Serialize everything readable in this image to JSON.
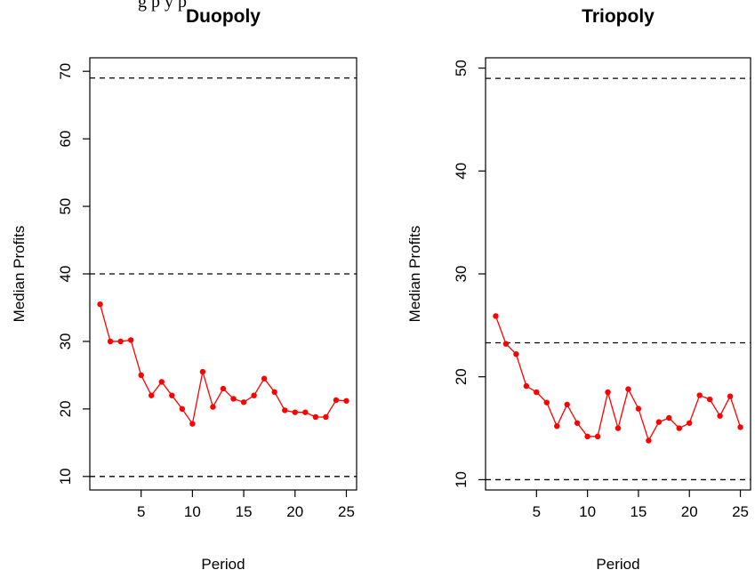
{
  "figure_caption_fragment": "g                p        y p",
  "chart_data": [
    {
      "type": "line",
      "title": "Duopoly",
      "xlabel": "Period",
      "ylabel": "Median Profits",
      "xlim": [
        0,
        26
      ],
      "ylim": [
        8,
        72
      ],
      "xticks": [
        5,
        10,
        15,
        20,
        25
      ],
      "yticks": [
        10,
        20,
        30,
        40,
        50,
        60,
        70
      ],
      "x": [
        1,
        2,
        3,
        4,
        5,
        6,
        7,
        8,
        9,
        10,
        11,
        12,
        13,
        14,
        15,
        16,
        17,
        18,
        19,
        20,
        21,
        22,
        23,
        24,
        25
      ],
      "series": [
        {
          "color": "#ff0000",
          "values": [
            35.5,
            30.0,
            30.0,
            30.2,
            25.0,
            22.0,
            24.0,
            22.0,
            20.0,
            17.8,
            25.5,
            20.3,
            23.0,
            21.5,
            21.0,
            22.0,
            24.5,
            22.5,
            19.8,
            19.5,
            19.5,
            18.8,
            18.8,
            21.3,
            21.2
          ]
        }
      ],
      "hlines": [
        10,
        40,
        69
      ]
    },
    {
      "type": "line",
      "title": "Triopoly",
      "xlabel": "Period",
      "ylabel": "Median Profits",
      "xlim": [
        0,
        26
      ],
      "ylim": [
        9,
        51
      ],
      "xticks": [
        5,
        10,
        15,
        20,
        25
      ],
      "yticks": [
        10,
        20,
        30,
        40,
        50
      ],
      "x": [
        1,
        2,
        3,
        4,
        5,
        6,
        7,
        8,
        9,
        10,
        11,
        12,
        13,
        14,
        15,
        16,
        17,
        18,
        19,
        20,
        21,
        22,
        23,
        24,
        25
      ],
      "series": [
        {
          "color": "#ff0000",
          "values": [
            25.9,
            23.2,
            22.2,
            19.1,
            18.5,
            17.5,
            15.2,
            17.3,
            15.5,
            14.2,
            14.2,
            18.5,
            15.0,
            18.8,
            16.9,
            13.8,
            15.6,
            16.0,
            15.0,
            15.5,
            18.2,
            17.8,
            16.2,
            18.1,
            15.1
          ]
        }
      ],
      "hlines": [
        10,
        23.3,
        49
      ]
    }
  ]
}
